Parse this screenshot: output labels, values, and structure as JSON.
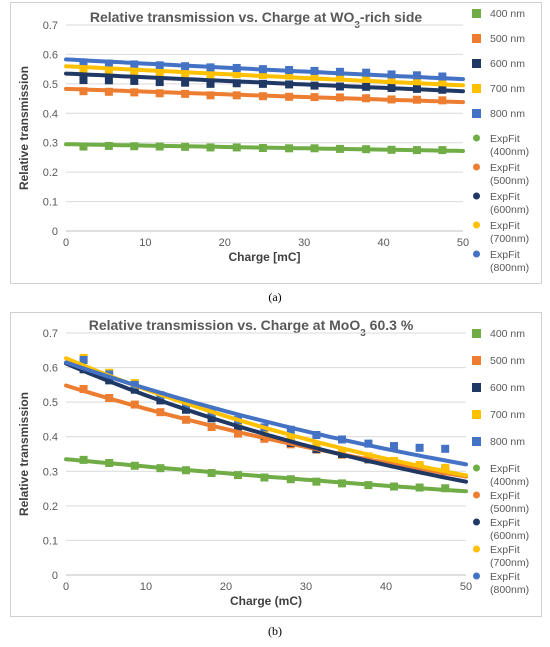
{
  "chart_data": [
    {
      "type": "scatter",
      "title_prefix": "Relative transmission vs. Charge at WO",
      "title_sub": "3",
      "title_suffix": "-rich side",
      "xlabel": "Charge [mC]",
      "ylabel": "Relative transmission",
      "xlim": [
        0,
        50
      ],
      "ylim": [
        0,
        0.7
      ],
      "xticks": [
        "0",
        "10",
        "20",
        "30",
        "40",
        "50"
      ],
      "yticks": [
        "0",
        "0.1",
        "0.2",
        "0.3",
        "0.4",
        "0.5",
        "0.6",
        "0.7"
      ],
      "grid": true,
      "legend_position": "right",
      "caption": "(a)",
      "x": [
        2.2,
        5.4,
        8.6,
        11.8,
        15.0,
        18.2,
        21.5,
        24.8,
        28.1,
        31.3,
        34.5,
        37.8,
        41.0,
        44.2,
        47.4
      ],
      "series": [
        {
          "name": "400 nm",
          "color": "#70ad47",
          "values": [
            0.287,
            0.289,
            0.288,
            0.287,
            0.286,
            0.284,
            0.284,
            0.282,
            0.281,
            0.281,
            0.279,
            0.278,
            0.276,
            0.275,
            0.275
          ]
        },
        {
          "name": "500 nm",
          "color": "#ed7d31",
          "values": [
            0.475,
            0.473,
            0.471,
            0.468,
            0.466,
            0.461,
            0.461,
            0.458,
            0.456,
            0.455,
            0.454,
            0.451,
            0.447,
            0.446,
            0.444
          ]
        },
        {
          "name": "600 nm",
          "color": "#203864",
          "values": [
            0.513,
            0.512,
            0.51,
            0.506,
            0.504,
            0.5,
            0.502,
            0.5,
            0.498,
            0.494,
            0.491,
            0.49,
            0.486,
            0.483,
            0.48
          ]
        },
        {
          "name": "700 nm",
          "color": "#ffc000",
          "values": [
            0.545,
            0.543,
            0.541,
            0.538,
            0.536,
            0.532,
            0.533,
            0.53,
            0.528,
            0.524,
            0.521,
            0.52,
            0.516,
            0.513,
            0.51
          ]
        },
        {
          "name": "800 nm",
          "color": "#4472c4",
          "values": [
            0.573,
            0.569,
            0.566,
            0.563,
            0.56,
            0.556,
            0.554,
            0.55,
            0.547,
            0.544,
            0.541,
            0.538,
            0.532,
            0.529,
            0.525
          ]
        }
      ],
      "fits": [
        {
          "name": "ExpFit (400nm)",
          "color": "#70ad47",
          "start": 0.295,
          "end": 0.272
        },
        {
          "name": "ExpFit (500nm)",
          "color": "#ed7d31",
          "start": 0.483,
          "end": 0.438
        },
        {
          "name": "ExpFit (600nm)",
          "color": "#203864",
          "start": 0.535,
          "end": 0.475
        },
        {
          "name": "ExpFit (700nm)",
          "color": "#ffc000",
          "start": 0.56,
          "end": 0.495
        },
        {
          "name": "ExpFit (800nm)",
          "color": "#4472c4",
          "start": 0.583,
          "end": 0.516
        }
      ]
    },
    {
      "type": "scatter",
      "title_prefix": "Relative transmission vs. Charge at MoO",
      "title_sub": "3",
      "title_suffix": " 60.3 %",
      "xlabel": "Charge (mC)",
      "ylabel": "Relative transmission",
      "xlim": [
        0,
        50
      ],
      "ylim": [
        0,
        0.7
      ],
      "xticks": [
        "0",
        "10",
        "20",
        "30",
        "40",
        "50"
      ],
      "yticks": [
        "0",
        "0.1",
        "0.2",
        "0.3",
        "0.4",
        "0.5",
        "0.6",
        "0.7"
      ],
      "grid": true,
      "legend_position": "right",
      "caption": "(b)",
      "x": [
        2.2,
        5.4,
        8.6,
        11.8,
        15.0,
        18.2,
        21.5,
        24.8,
        28.1,
        31.3,
        34.5,
        37.8,
        41.0,
        44.2,
        47.4
      ],
      "series": [
        {
          "name": "400 nm",
          "color": "#70ad47",
          "values": [
            0.333,
            0.324,
            0.316,
            0.309,
            0.303,
            0.295,
            0.289,
            0.282,
            0.277,
            0.27,
            0.265,
            0.26,
            0.256,
            0.253,
            0.251
          ]
        },
        {
          "name": "500 nm",
          "color": "#ed7d31",
          "values": [
            0.538,
            0.512,
            0.493,
            0.471,
            0.449,
            0.428,
            0.409,
            0.394,
            0.378,
            0.363,
            0.348,
            0.334,
            0.32,
            0.306,
            0.3
          ]
        },
        {
          "name": "600 nm",
          "color": "#203864",
          "values": [
            0.595,
            0.563,
            0.536,
            0.505,
            0.478,
            0.453,
            0.43,
            0.402,
            0.382,
            0.364,
            0.35,
            0.335,
            0.322,
            0.311,
            0.305
          ]
        },
        {
          "name": "700 nm",
          "color": "#ffc000",
          "values": [
            0.628,
            0.585,
            0.555,
            0.52,
            0.492,
            0.465,
            0.44,
            0.415,
            0.394,
            0.376,
            0.357,
            0.343,
            0.33,
            0.318,
            0.31
          ]
        },
        {
          "name": "800 nm",
          "color": "#4472c4",
          "values": [
            0.622,
            0.58,
            0.55,
            0.52,
            0.492,
            0.468,
            0.448,
            0.427,
            0.42,
            0.405,
            0.392,
            0.38,
            0.373,
            0.368,
            0.365
          ]
        }
      ],
      "fits": [
        {
          "name": "ExpFit (400nm)",
          "color": "#70ad47",
          "start": 0.335,
          "end": 0.242
        },
        {
          "name": "ExpFit (500nm)",
          "color": "#ed7d31",
          "start": 0.548,
          "end": 0.285
        },
        {
          "name": "ExpFit (600nm)",
          "color": "#203864",
          "start": 0.612,
          "end": 0.27
        },
        {
          "name": "ExpFit (700nm)",
          "color": "#ffc000",
          "start": 0.627,
          "end": 0.288
        },
        {
          "name": "ExpFit (800nm)",
          "color": "#4472c4",
          "start": 0.615,
          "end": 0.32
        }
      ]
    }
  ]
}
